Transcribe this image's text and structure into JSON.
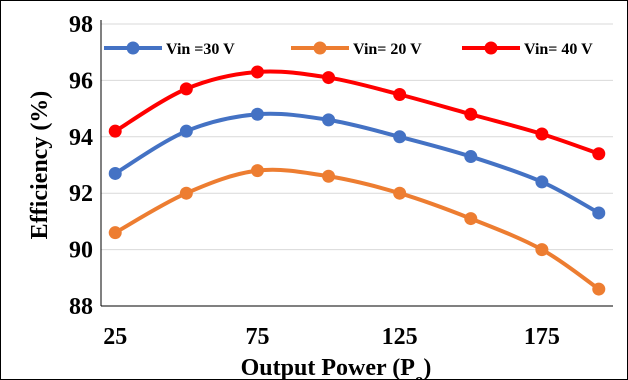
{
  "chart_data": {
    "type": "line",
    "x": [
      25,
      50,
      75,
      100,
      125,
      150,
      175,
      195
    ],
    "x_ticks": [
      "25",
      "75",
      "125",
      "175"
    ],
    "y_ticks": [
      "88",
      "90",
      "92",
      "94",
      "96",
      "98"
    ],
    "xlim": [
      20,
      200
    ],
    "ylim": [
      88,
      98
    ],
    "xlabel": "Output Power (P",
    "xlabel_sub": "o",
    "xlabel_close": ")",
    "ylabel": "Efficiency (%)",
    "legend_position": "top",
    "grid": "horizontal",
    "smooth": true,
    "series": [
      {
        "name": "Vin =30 V",
        "color": "#4472C4",
        "values": [
          92.7,
          94.2,
          94.8,
          94.6,
          94.0,
          93.3,
          92.4,
          91.3
        ]
      },
      {
        "name": "Vin= 20 V",
        "color": "#ED7D31",
        "values": [
          90.6,
          92.0,
          92.8,
          92.6,
          92.0,
          91.1,
          90.0,
          88.6
        ]
      },
      {
        "name": "Vin= 40 V",
        "color": "#FF0000",
        "values": [
          94.2,
          95.7,
          96.3,
          96.1,
          95.5,
          94.8,
          94.1,
          93.4
        ]
      }
    ]
  }
}
